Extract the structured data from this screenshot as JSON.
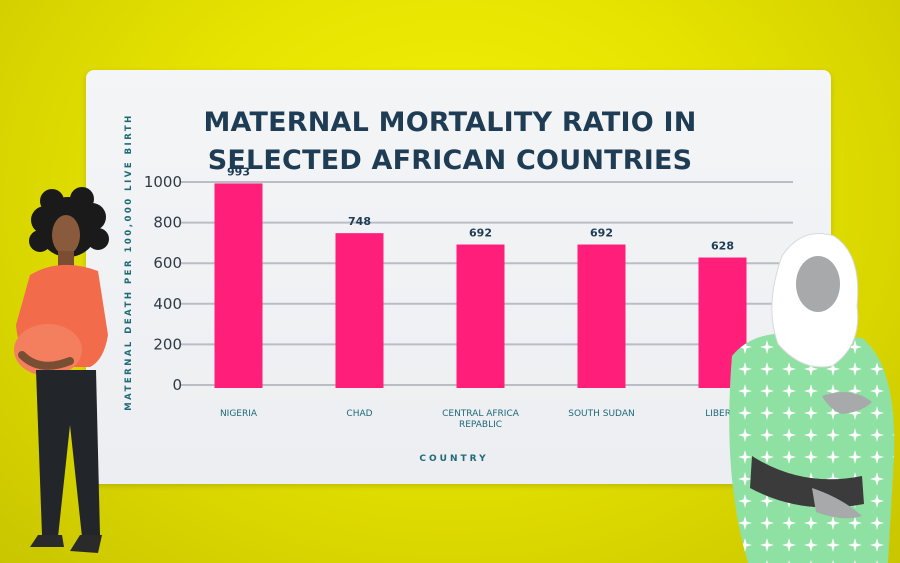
{
  "chart_data": {
    "type": "bar",
    "title": [
      "MATERNAL MORTALITY RATIO IN",
      "SELECTED AFRICAN COUNTRIES"
    ],
    "categories": [
      "NIGERIA",
      "CHAD",
      "CENTRAL AFRICA REPABLIC",
      "SOUTH SUDAN",
      "LIBERIA"
    ],
    "category_lines": [
      [
        "NIGERIA"
      ],
      [
        "CHAD"
      ],
      [
        "CENTRAL AFRICA",
        "REPABLIC"
      ],
      [
        "SOUTH SUDAN"
      ],
      [
        "LIBERIA"
      ]
    ],
    "values": [
      993,
      748,
      692,
      692,
      628
    ],
    "data_labels": [
      "993",
      "748",
      "692",
      "692",
      "628"
    ],
    "xlabel": "COUNTRY",
    "ylabel": "MATERNAL DEATH PER 100,000 LIVE BIRTH",
    "ylim": [
      0,
      1000
    ],
    "yticks": [
      "0",
      "200",
      "400",
      "600",
      "800",
      "1000"
    ],
    "bar_color": "#ff1f7a",
    "grid": true
  },
  "colors": {
    "background": "#e6e300",
    "card": "#f1f2f4",
    "title": "#1f3c55",
    "axis_text": "#1f6a78",
    "gridline": "#b9bec6"
  }
}
